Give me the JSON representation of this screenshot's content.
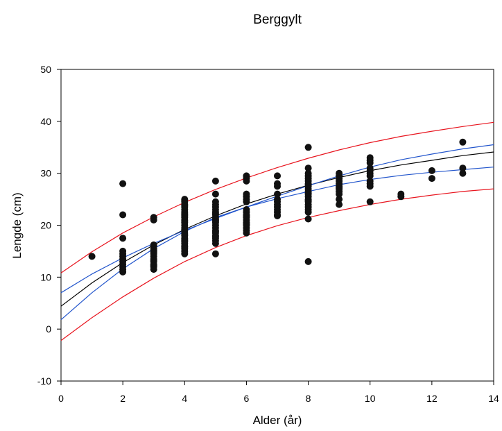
{
  "chart_data": {
    "type": "scatter",
    "title": "Berggylt",
    "xlabel": "Alder (år)",
    "ylabel": "Lengde (cm)",
    "xlim": [
      0,
      14
    ],
    "ylim": [
      -10,
      50
    ],
    "xticks": [
      "0",
      "2",
      "4",
      "6",
      "8",
      "10",
      "12",
      "14"
    ],
    "yticks": [
      "-10",
      "0",
      "10",
      "20",
      "30",
      "40",
      "50"
    ],
    "grid": false,
    "legend": "none",
    "points": {
      "x": [
        1,
        2,
        2,
        2,
        2,
        2,
        2,
        2,
        2,
        2,
        2,
        2,
        2,
        3,
        3,
        3,
        3,
        3,
        3,
        3,
        3,
        3,
        3,
        3,
        3,
        3,
        3,
        3,
        3,
        3,
        4,
        4,
        4,
        4,
        4,
        4,
        4,
        4,
        4,
        4,
        4,
        4,
        4,
        4,
        4,
        4,
        4,
        4,
        4,
        4,
        4,
        4,
        4,
        4,
        4,
        4,
        4,
        4,
        4,
        4,
        4,
        4,
        5,
        5,
        5,
        5,
        5,
        5,
        5,
        5,
        5,
        5,
        5,
        5,
        5,
        5,
        5,
        5,
        5,
        5,
        5,
        5,
        5,
        5,
        5,
        5,
        5,
        6,
        6,
        6,
        6,
        6,
        6,
        6,
        6,
        6,
        6,
        6,
        6,
        6,
        6,
        6,
        6,
        6,
        6,
        6,
        7,
        7,
        7,
        7,
        7,
        7,
        7,
        7,
        7,
        7,
        7,
        7,
        8,
        8,
        8,
        8,
        8,
        8,
        8,
        8,
        8,
        8,
        8,
        8,
        8,
        8,
        8,
        8,
        8,
        8,
        8,
        8,
        8,
        8,
        8,
        9,
        9,
        9,
        9,
        9,
        9,
        9,
        9,
        9,
        9,
        9,
        9,
        10,
        10,
        10,
        10,
        10,
        10,
        10,
        10,
        10,
        10,
        10,
        11,
        11,
        12,
        12,
        13,
        13,
        13
      ],
      "y": [
        14,
        28,
        22,
        17.5,
        15,
        14,
        13.5,
        13,
        12.5,
        12,
        11.5,
        11,
        14.5,
        21.5,
        21,
        16,
        15.5,
        15,
        14.5,
        14,
        13.5,
        13,
        12.5,
        12,
        11.5,
        14.8,
        15.2,
        13.2,
        12.2,
        16.2,
        25,
        24.5,
        24,
        23.5,
        23,
        22.5,
        22,
        21.5,
        21,
        20.5,
        20,
        19.5,
        19,
        18.5,
        18,
        17.5,
        17,
        16.5,
        16,
        15.5,
        15,
        14.5,
        22.2,
        20.8,
        19.2,
        18.2,
        17.2,
        15.8,
        24.8,
        23.8,
        21.8,
        16.8,
        28.5,
        26,
        24.5,
        24,
        23.5,
        23,
        22.5,
        22,
        21.5,
        21,
        20.5,
        20,
        19.5,
        19,
        18.5,
        18,
        17.5,
        17,
        16.5,
        14.5,
        22.2,
        20.8,
        21.2,
        18.8,
        17.8,
        29.5,
        29,
        28.5,
        26,
        25.5,
        25,
        24.5,
        23,
        22.5,
        22,
        21.5,
        21,
        20.5,
        20,
        19.5,
        19,
        18.5,
        20.2,
        21.8,
        29.5,
        28,
        27.5,
        26,
        25,
        24.5,
        24,
        23.5,
        23,
        22.5,
        22,
        21.8,
        35,
        31,
        30,
        29.5,
        29,
        28.5,
        28,
        27.5,
        27,
        26.5,
        26,
        25.5,
        25,
        24.5,
        24,
        23.5,
        23,
        22.5,
        21.2,
        13,
        27.8,
        26.2,
        24.8,
        30,
        29.5,
        29,
        28.5,
        28,
        27.5,
        27,
        26.5,
        26,
        25,
        24,
        27.2,
        33,
        32.5,
        32,
        31,
        30.5,
        30,
        29.5,
        28.5,
        28,
        27.5,
        24.5,
        26,
        25.5,
        30.5,
        29,
        36,
        31,
        30
      ]
    },
    "curves": [
      {
        "color": "#000000",
        "x": [
          0,
          1,
          2,
          3,
          4,
          5,
          6,
          7,
          8,
          9,
          10,
          11,
          12,
          13,
          14
        ],
        "y": [
          4.4,
          8.9,
          12.8,
          16.2,
          19.2,
          21.8,
          24.1,
          26.0,
          27.7,
          29.2,
          30.5,
          31.6,
          32.5,
          33.4,
          34.1
        ]
      },
      {
        "color": "#2255cc",
        "x": [
          0,
          1,
          2,
          3,
          4,
          5,
          6,
          7,
          8,
          9,
          10,
          11,
          12,
          13,
          14
        ],
        "y": [
          7.0,
          10.6,
          13.7,
          16.5,
          19.0,
          21.3,
          23.5,
          25.6,
          27.6,
          29.5,
          31.2,
          32.6,
          33.7,
          34.7,
          35.5
        ]
      },
      {
        "color": "#2255cc",
        "x": [
          0,
          1,
          2,
          3,
          4,
          5,
          6,
          7,
          8,
          9,
          10,
          11,
          12,
          13,
          14
        ],
        "y": [
          1.8,
          7.0,
          11.6,
          15.5,
          18.8,
          21.5,
          23.5,
          25.1,
          26.5,
          27.8,
          28.8,
          29.6,
          30.2,
          30.7,
          31.2
        ]
      },
      {
        "color": "#e8141e",
        "x": [
          0,
          1,
          2,
          3,
          4,
          5,
          6,
          7,
          8,
          9,
          10,
          11,
          12,
          13,
          14
        ],
        "y": [
          10.8,
          14.9,
          18.5,
          21.6,
          24.4,
          26.9,
          29.1,
          31.1,
          32.9,
          34.5,
          35.9,
          37.1,
          38.1,
          39.0,
          39.8
        ]
      },
      {
        "color": "#e8141e",
        "x": [
          0,
          1,
          2,
          3,
          4,
          5,
          6,
          7,
          8,
          9,
          10,
          11,
          12,
          13,
          14
        ],
        "y": [
          -2.2,
          2.2,
          6.2,
          9.8,
          13.0,
          15.7,
          18.0,
          19.9,
          21.5,
          22.8,
          24.0,
          25.0,
          25.8,
          26.5,
          27.0
        ]
      }
    ]
  }
}
